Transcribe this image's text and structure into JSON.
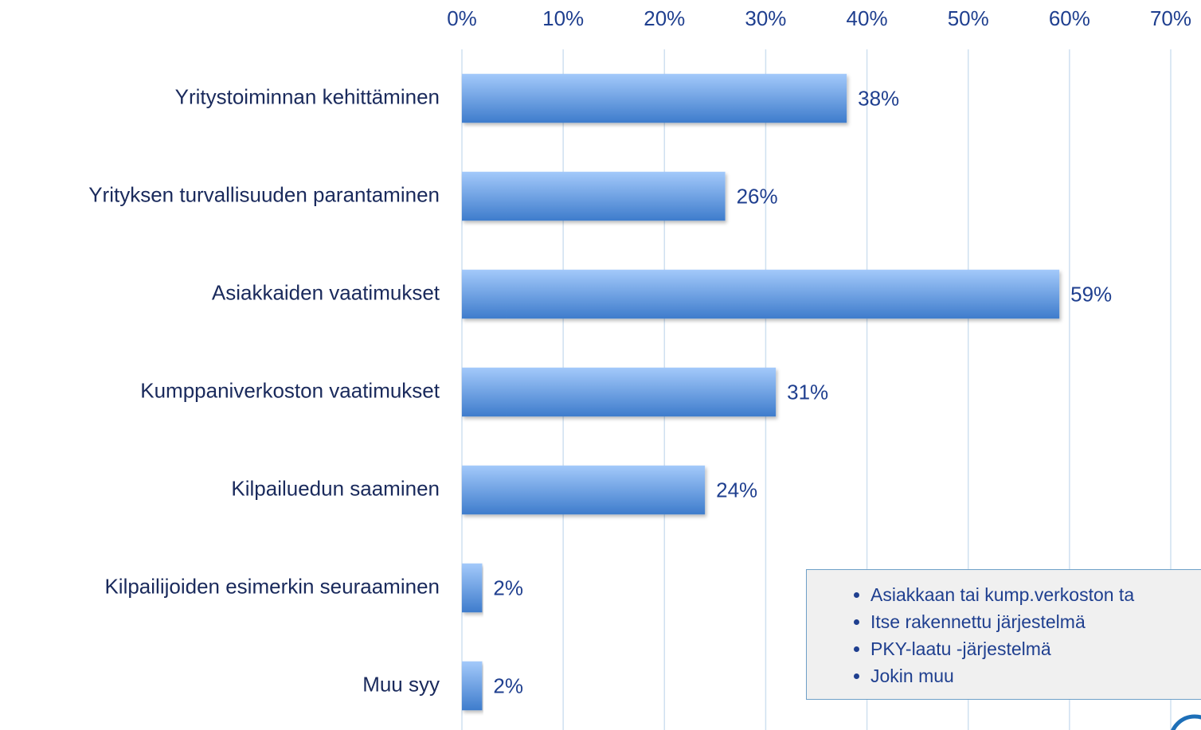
{
  "chart_data": {
    "type": "bar",
    "orientation": "horizontal",
    "categories": [
      "Yritystoiminnan kehittäminen",
      "Yrityksen turvallisuuden parantaminen",
      "Asiakkaiden vaatimukset",
      "Kumppaniverkoston vaatimukset",
      "Kilpailuedun saaminen",
      "Kilpailijoiden esimerkin seuraaminen",
      "Muu syy"
    ],
    "values": [
      38,
      26,
      59,
      31,
      24,
      2,
      2
    ],
    "value_labels": [
      "38%",
      "26%",
      "59%",
      "31%",
      "24%",
      "2%",
      "2%"
    ],
    "color": "#5b95e0",
    "xlim": [
      0,
      70
    ],
    "xticks": [
      {
        "value": 0,
        "label": "0%"
      },
      {
        "value": 10,
        "label": "10%"
      },
      {
        "value": 20,
        "label": "20%"
      },
      {
        "value": 30,
        "label": "30%"
      },
      {
        "value": 40,
        "label": "40%"
      },
      {
        "value": 50,
        "label": "50%"
      },
      {
        "value": 60,
        "label": "60%"
      },
      {
        "value": 70,
        "label": "70%"
      }
    ],
    "grid": true,
    "annotations": [
      "Asiakkaan tai kump.verkoston ta",
      "Itse rakennettu järjestelmä",
      "PKY-laatu -järjestelmä",
      "Jokin muu"
    ]
  }
}
